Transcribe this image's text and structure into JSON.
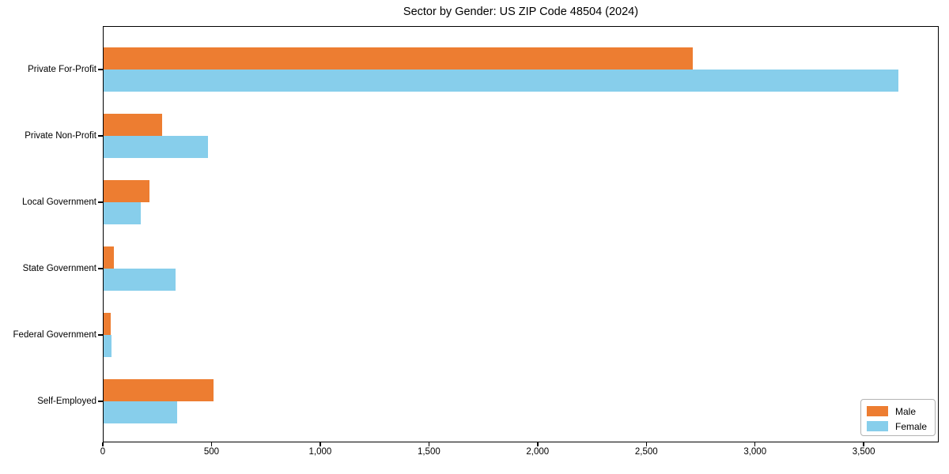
{
  "figure": {
    "background": "#ffffff"
  },
  "chart_data": {
    "type": "bar",
    "orientation": "horizontal",
    "title": "Sector by Gender: US ZIP Code 48504 (2024)",
    "categories": [
      "Private For-Profit",
      "Private Non-Profit",
      "Local Government",
      "State Government",
      "Federal Government",
      "Self-Employed"
    ],
    "series": [
      {
        "name": "Male",
        "color": "#ED7D31",
        "values": [
          2710,
          270,
          210,
          48,
          33,
          505
        ]
      },
      {
        "name": "Female",
        "color": "#87CEEB",
        "values": [
          3655,
          480,
          170,
          330,
          36,
          337
        ]
      }
    ],
    "xlabel": "",
    "ylabel": "",
    "xlim": [
      0,
      3845
    ],
    "xticks": [
      0,
      500,
      1000,
      1500,
      2000,
      2500,
      3000,
      3500
    ],
    "xtick_labels": [
      "0",
      "500",
      "1,000",
      "1,500",
      "2,000",
      "2,500",
      "3,000",
      "3,500"
    ],
    "grid": false,
    "legend": {
      "position": "lower right",
      "entries": [
        "Male",
        "Female"
      ]
    }
  }
}
